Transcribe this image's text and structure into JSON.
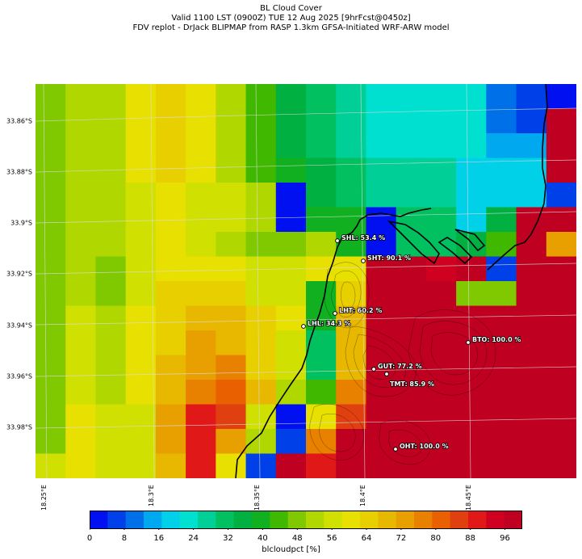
{
  "title": {
    "line1": "BL Cloud Cover",
    "line2": "Valid 1100 LST (0900Z) TUE 12 Aug 2025 [9hrFcst@0450z]",
    "line3": "FDV replot - DrJack BLIPMAP from RASP 1.3km GFSA-Initiated WRF-ARW model"
  },
  "lat_labels": [
    "33.86°S",
    "33.88°S",
    "33.9°S",
    "33.92°S",
    "33.94°S",
    "33.96°S",
    "33.98°S"
  ],
  "lon_labels": [
    "18.25°E",
    "18.3°E",
    "18.35°E",
    "18.4°E",
    "18.45°E"
  ],
  "stations": [
    {
      "id": "SHL",
      "label": "SHL: 53.4 %",
      "value": 53.4
    },
    {
      "id": "SHT",
      "label": "SHT: 90.1 %",
      "value": 90.1
    },
    {
      "id": "LHT",
      "label": "LHT: 60.2 %",
      "value": 60.2
    },
    {
      "id": "LHL",
      "label": "LHL: 34.3 %",
      "value": 34.3
    },
    {
      "id": "BTO",
      "label": "BTO: 100.0 %",
      "value": 100.0
    },
    {
      "id": "GUT",
      "label": "GUT: 77.2 %",
      "value": 77.2
    },
    {
      "id": "TMT",
      "label": "TMT: 85.9 %",
      "value": 85.9
    },
    {
      "id": "OHT",
      "label": "OHT: 100.0 %",
      "value": 100.0
    }
  ],
  "colorbar": {
    "label": "blcloudpct [%]",
    "ticks": [
      "0",
      "8",
      "16",
      "24",
      "32",
      "40",
      "48",
      "56",
      "64",
      "72",
      "80",
      "88",
      "96"
    ],
    "min": 0,
    "max": 100,
    "step": 4,
    "colors": [
      "#0010f0",
      "#0040e8",
      "#0070e8",
      "#00a8f0",
      "#00d0e8",
      "#00e0d0",
      "#00d098",
      "#00c060",
      "#00b040",
      "#10b020",
      "#40b800",
      "#80c800",
      "#b0d800",
      "#d0e000",
      "#e8e000",
      "#e8d000",
      "#e8b800",
      "#e8a000",
      "#e88000",
      "#e86000",
      "#e04010",
      "#e01818",
      "#d00020",
      "#c00020"
    ]
  },
  "chart_data": {
    "type": "heatmap",
    "variable": "blcloudpct [%]",
    "lat_range": [
      "33.84°S",
      "34.00°S"
    ],
    "lon_range": [
      "18.25°E",
      "18.48°E"
    ],
    "grid_rows": [
      [
        46,
        48,
        50,
        58,
        62,
        58,
        50,
        42,
        34,
        28,
        24,
        20,
        20,
        20,
        20,
        8,
        4,
        2
      ],
      [
        46,
        48,
        50,
        58,
        62,
        58,
        50,
        42,
        34,
        28,
        24,
        20,
        20,
        20,
        20,
        8,
        4,
        96
      ],
      [
        46,
        48,
        50,
        56,
        60,
        56,
        50,
        42,
        34,
        28,
        24,
        20,
        20,
        20,
        20,
        12,
        12,
        96
      ],
      [
        46,
        48,
        50,
        56,
        60,
        56,
        50,
        42,
        36,
        32,
        28,
        24,
        24,
        24,
        18,
        18,
        18,
        96
      ],
      [
        46,
        48,
        50,
        52,
        58,
        54,
        52,
        50,
        2,
        32,
        28,
        26,
        26,
        26,
        18,
        18,
        18,
        4
      ],
      [
        46,
        48,
        50,
        52,
        58,
        54,
        52,
        50,
        2,
        36,
        36,
        2,
        30,
        30,
        16,
        34,
        96,
        96
      ],
      [
        46,
        48,
        50,
        52,
        56,
        52,
        50,
        46,
        46,
        50,
        36,
        2,
        30,
        30,
        34,
        40,
        96,
        68
      ],
      [
        46,
        48,
        46,
        52,
        56,
        56,
        56,
        52,
        52,
        56,
        58,
        96,
        96,
        88,
        96,
        4,
        96,
        96
      ],
      [
        46,
        48,
        44,
        52,
        60,
        60,
        60,
        54,
        54,
        38,
        62,
        96,
        96,
        96,
        46,
        46,
        96,
        96
      ],
      [
        46,
        52,
        50,
        56,
        60,
        64,
        66,
        60,
        56,
        36,
        64,
        96,
        96,
        96,
        96,
        96,
        96,
        96
      ],
      [
        46,
        52,
        50,
        56,
        62,
        68,
        66,
        60,
        54,
        30,
        64,
        96,
        96,
        96,
        96,
        96,
        96,
        96
      ],
      [
        46,
        52,
        50,
        56,
        64,
        70,
        72,
        62,
        54,
        30,
        66,
        96,
        96,
        96,
        96,
        96,
        96,
        96
      ],
      [
        46,
        52,
        50,
        56,
        66,
        74,
        76,
        64,
        50,
        40,
        74,
        96,
        96,
        96,
        96,
        96,
        96,
        96
      ],
      [
        46,
        56,
        52,
        52,
        68,
        86,
        80,
        52,
        2,
        56,
        82,
        96,
        96,
        96,
        96,
        96,
        96,
        96
      ],
      [
        46,
        56,
        52,
        52,
        70,
        86,
        70,
        48,
        4,
        74,
        96,
        96,
        96,
        96,
        96,
        96,
        96,
        96
      ],
      [
        52,
        56,
        52,
        52,
        66,
        86,
        56,
        6,
        96,
        86,
        96,
        96,
        96,
        96,
        96,
        96,
        96,
        96
      ]
    ]
  }
}
